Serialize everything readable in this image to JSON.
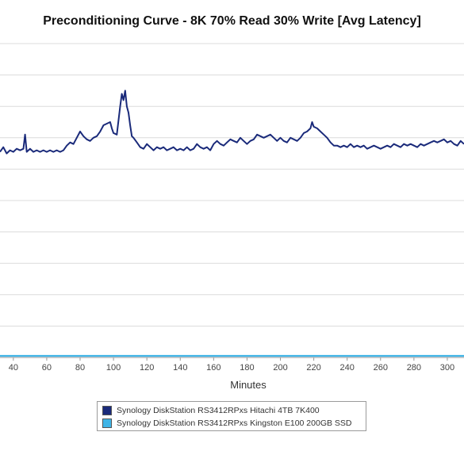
{
  "chart_data": {
    "type": "line",
    "title": "Preconditioning Curve - 8K 70% Read 30% Write [Avg Latency]",
    "xlabel": "Minutes",
    "ylabel": "",
    "x_ticks": [
      40,
      60,
      80,
      100,
      120,
      140,
      160,
      180,
      200,
      220,
      240,
      260,
      280,
      300
    ],
    "xlim": [
      32,
      310
    ],
    "ylim": [
      0,
      10
    ],
    "grid": true,
    "legend": "bottom-center",
    "series": [
      {
        "name": "Synology DiskStation RS3412RPxs Hitachi 4TB 7K400",
        "color": "#1a2a7a",
        "x": [
          32,
          34,
          36,
          38,
          40,
          42,
          44,
          46,
          47,
          48,
          50,
          52,
          54,
          56,
          58,
          60,
          62,
          64,
          66,
          68,
          70,
          72,
          74,
          76,
          78,
          80,
          82,
          84,
          86,
          88,
          90,
          92,
          94,
          96,
          98,
          99,
          100,
          102,
          104,
          105,
          106,
          107,
          108,
          109,
          110,
          111,
          112,
          114,
          116,
          118,
          120,
          122,
          124,
          126,
          128,
          130,
          132,
          134,
          136,
          138,
          140,
          142,
          144,
          146,
          148,
          150,
          152,
          154,
          156,
          158,
          160,
          162,
          164,
          166,
          168,
          170,
          172,
          174,
          176,
          178,
          180,
          182,
          184,
          186,
          188,
          190,
          192,
          194,
          196,
          198,
          200,
          202,
          204,
          206,
          208,
          210,
          212,
          214,
          216,
          218,
          219,
          220,
          222,
          224,
          226,
          228,
          230,
          232,
          234,
          236,
          238,
          240,
          242,
          244,
          246,
          248,
          250,
          252,
          254,
          256,
          258,
          260,
          262,
          264,
          266,
          268,
          270,
          272,
          274,
          276,
          278,
          280,
          282,
          284,
          286,
          288,
          290,
          292,
          294,
          296,
          298,
          300,
          302,
          304,
          306,
          308,
          310
        ],
        "values": [
          6.55,
          6.7,
          6.5,
          6.6,
          6.55,
          6.65,
          6.6,
          6.65,
          7.1,
          6.55,
          6.65,
          6.55,
          6.6,
          6.55,
          6.6,
          6.55,
          6.6,
          6.55,
          6.6,
          6.55,
          6.6,
          6.75,
          6.85,
          6.8,
          7.0,
          7.2,
          7.05,
          6.95,
          6.9,
          7.0,
          7.05,
          7.2,
          7.4,
          7.45,
          7.5,
          7.3,
          7.15,
          7.1,
          8.0,
          8.4,
          8.2,
          8.5,
          8.0,
          7.8,
          7.4,
          7.05,
          7.0,
          6.85,
          6.7,
          6.65,
          6.8,
          6.7,
          6.6,
          6.7,
          6.65,
          6.7,
          6.6,
          6.65,
          6.7,
          6.6,
          6.65,
          6.6,
          6.7,
          6.6,
          6.65,
          6.8,
          6.7,
          6.65,
          6.7,
          6.6,
          6.8,
          6.9,
          6.8,
          6.75,
          6.85,
          6.95,
          6.9,
          6.85,
          7.0,
          6.9,
          6.8,
          6.9,
          6.95,
          7.1,
          7.05,
          7.0,
          7.05,
          7.1,
          7.0,
          6.9,
          7.0,
          6.9,
          6.85,
          7.0,
          6.95,
          6.9,
          7.0,
          7.15,
          7.2,
          7.3,
          7.5,
          7.35,
          7.3,
          7.2,
          7.1,
          7.0,
          6.85,
          6.75,
          6.75,
          6.7,
          6.75,
          6.7,
          6.8,
          6.7,
          6.75,
          6.7,
          6.75,
          6.65,
          6.7,
          6.75,
          6.7,
          6.65,
          6.7,
          6.75,
          6.7,
          6.8,
          6.75,
          6.7,
          6.8,
          6.75,
          6.8,
          6.75,
          6.7,
          6.8,
          6.75,
          6.8,
          6.85,
          6.9,
          6.85,
          6.9,
          6.95,
          6.85,
          6.9,
          6.8,
          6.75,
          6.9,
          6.8
        ]
      },
      {
        "name": "Synology DiskStation RS3412RPxs Kingston E100 200GB SSD",
        "color": "#3fb4e6",
        "x": [
          32,
          310
        ],
        "values": [
          0.05,
          0.05
        ]
      }
    ]
  }
}
